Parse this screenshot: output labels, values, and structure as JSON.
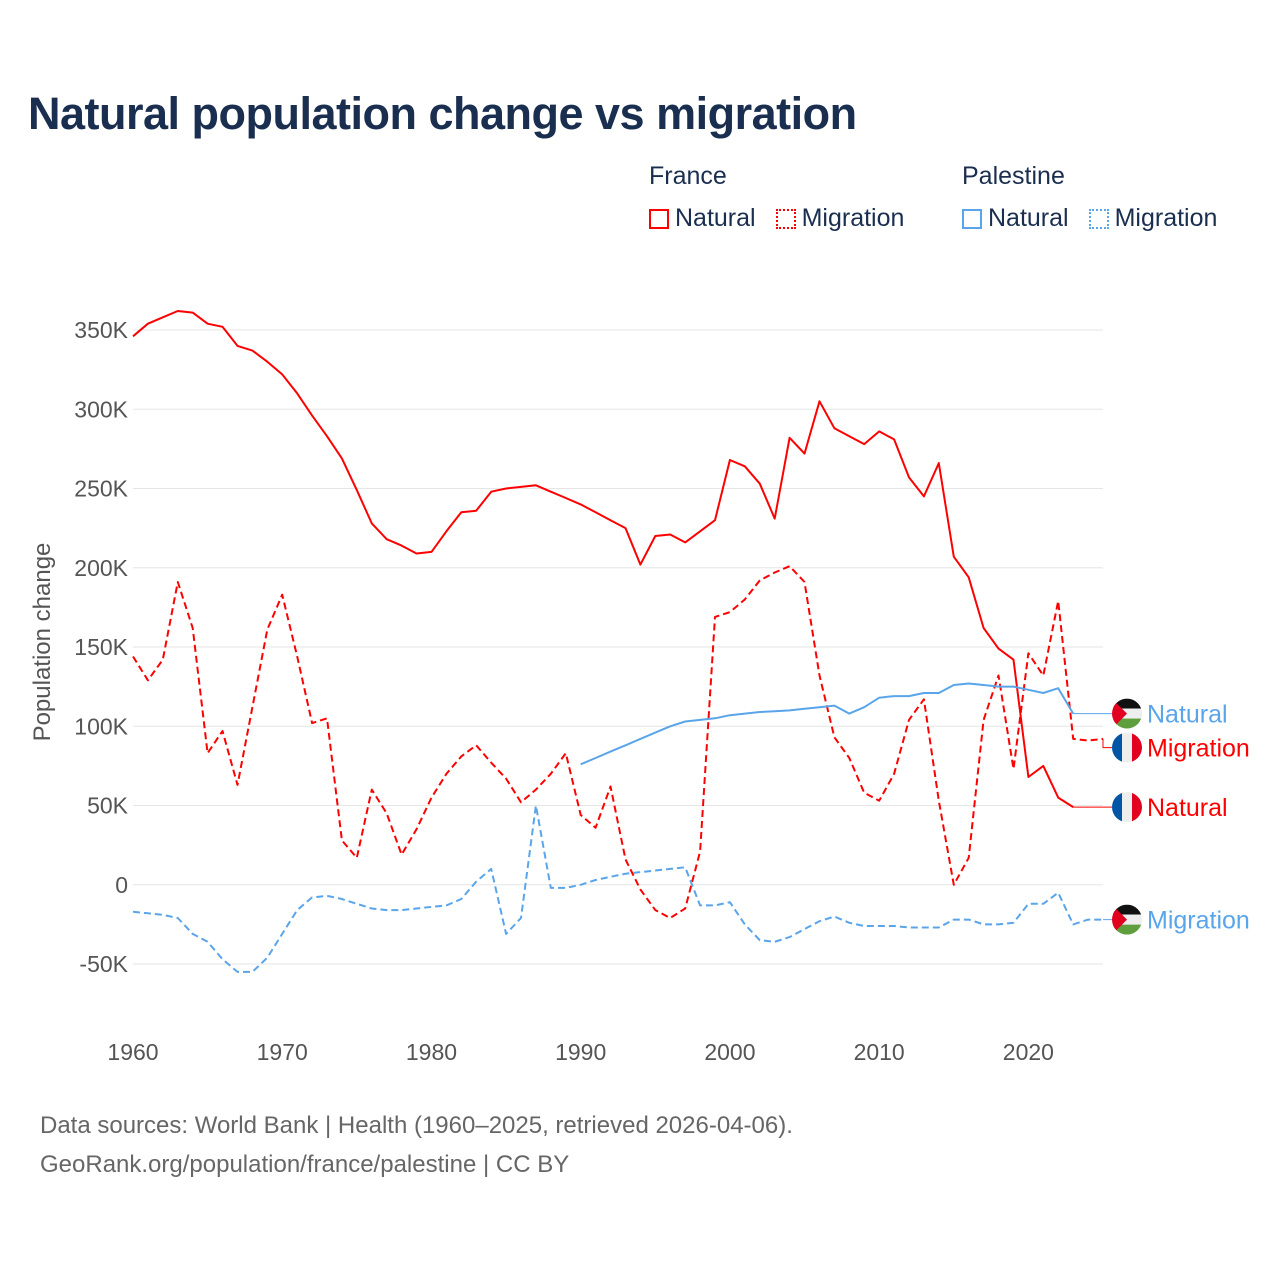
{
  "title": "Natural population change vs migration",
  "legend": {
    "groups": [
      {
        "name": "France",
        "items": [
          {
            "label": "Natural",
            "style": "solid",
            "color": "#ff0000"
          },
          {
            "label": "Migration",
            "style": "dotted",
            "color": "#ff0000"
          }
        ]
      },
      {
        "name": "Palestine",
        "items": [
          {
            "label": "Natural",
            "style": "solid",
            "color": "#5aa5ea"
          },
          {
            "label": "Migration",
            "style": "dotted",
            "color": "#5aa5ea"
          }
        ]
      }
    ]
  },
  "footer": {
    "line1": "Data sources: World Bank | Health (1960–2025, retrieved 2026-04-06).",
    "line2": "GeoRank.org/population/france/palestine | CC BY"
  },
  "chart_data": {
    "type": "line",
    "title": "Natural population change vs migration",
    "xlabel": "",
    "ylabel": "Population change",
    "xlim": [
      1960,
      2025
    ],
    "ylim": [
      -50,
      350
    ],
    "y_unit": "thousands",
    "x_ticks": [
      1960,
      1970,
      1980,
      1990,
      2000,
      2010,
      2020
    ],
    "y_ticks": [
      {
        "v": -50,
        "label": "-50K"
      },
      {
        "v": 0,
        "label": "0"
      },
      {
        "v": 50,
        "label": "50K"
      },
      {
        "v": 100,
        "label": "100K"
      },
      {
        "v": 150,
        "label": "150K"
      },
      {
        "v": 200,
        "label": "200K"
      },
      {
        "v": 250,
        "label": "250K"
      },
      {
        "v": 300,
        "label": "300K"
      },
      {
        "v": 350,
        "label": "350K"
      }
    ],
    "grid": true,
    "legend_position": "top-right",
    "series": [
      {
        "name": "France Natural",
        "country": "France",
        "end_label": "Natural",
        "flag": "france",
        "color": "#ff0000",
        "dash": false,
        "start": 1960,
        "values": [
          346,
          354,
          358,
          362,
          361,
          354,
          352,
          340,
          337,
          330,
          322,
          310,
          296,
          283,
          269,
          249,
          228,
          218,
          214,
          209,
          210,
          223,
          235,
          236,
          248,
          250,
          251,
          252,
          248,
          244,
          240,
          235,
          230,
          225,
          202,
          220,
          221,
          216,
          223,
          230,
          268,
          264,
          253,
          231,
          282,
          272,
          305,
          288,
          283,
          278,
          286,
          281,
          257,
          245,
          266,
          207,
          194,
          162,
          149,
          142,
          68,
          75,
          55,
          49
        ]
      },
      {
        "name": "France Migration",
        "country": "France",
        "end_label": "Migration",
        "flag": "france",
        "color": "#ff0000",
        "dash": true,
        "start": 1960,
        "values": [
          144,
          129,
          142,
          191,
          162,
          83,
          97,
          63,
          112,
          161,
          183,
          144,
          102,
          105,
          28,
          17,
          60,
          45,
          19,
          35,
          55,
          70,
          81,
          88,
          77,
          67,
          52,
          60,
          70,
          83,
          44,
          36,
          62,
          16,
          -3,
          -16,
          -21,
          -15,
          21,
          169,
          172,
          180,
          192,
          197,
          201,
          191,
          132,
          93,
          80,
          58,
          53,
          70,
          104,
          117,
          53,
          0,
          17,
          104,
          132,
          73,
          146,
          132,
          179,
          92,
          91,
          92
        ]
      },
      {
        "name": "Palestine Natural",
        "country": "Palestine",
        "end_label": "Natural",
        "flag": "palestine",
        "color": "#5aa5ea",
        "dash": false,
        "start": 1990,
        "values": [
          76,
          80,
          84,
          88,
          92,
          96,
          100,
          103,
          104,
          105,
          107,
          108,
          109,
          109.5,
          110,
          111,
          112,
          113,
          108,
          112,
          118,
          119,
          119,
          121,
          121,
          126,
          127,
          126,
          125,
          125,
          123,
          121,
          124,
          108
        ]
      },
      {
        "name": "Palestine Migration",
        "country": "Palestine",
        "end_label": "Migration",
        "flag": "palestine",
        "color": "#5aa5ea",
        "dash": true,
        "start": 1960,
        "values": [
          -17,
          -18,
          -19,
          -21,
          -31,
          -36,
          -47,
          -55,
          -55,
          -46,
          -31,
          -16,
          -8,
          -7,
          -9,
          -12,
          -15,
          -16,
          -16,
          -15,
          -14,
          -13,
          -9,
          2,
          10,
          -31,
          -21,
          50,
          -2,
          -2,
          0,
          3,
          5,
          7,
          8,
          9,
          10,
          11,
          -13,
          -13,
          -11,
          -25,
          -35,
          -36,
          -33,
          -28,
          -23,
          -20,
          -24,
          -26,
          -26,
          -26,
          -27,
          -27,
          -27,
          -22,
          -22,
          -25,
          -25,
          -24,
          -12,
          -12,
          -5,
          -25,
          -22,
          -22
        ]
      }
    ]
  }
}
